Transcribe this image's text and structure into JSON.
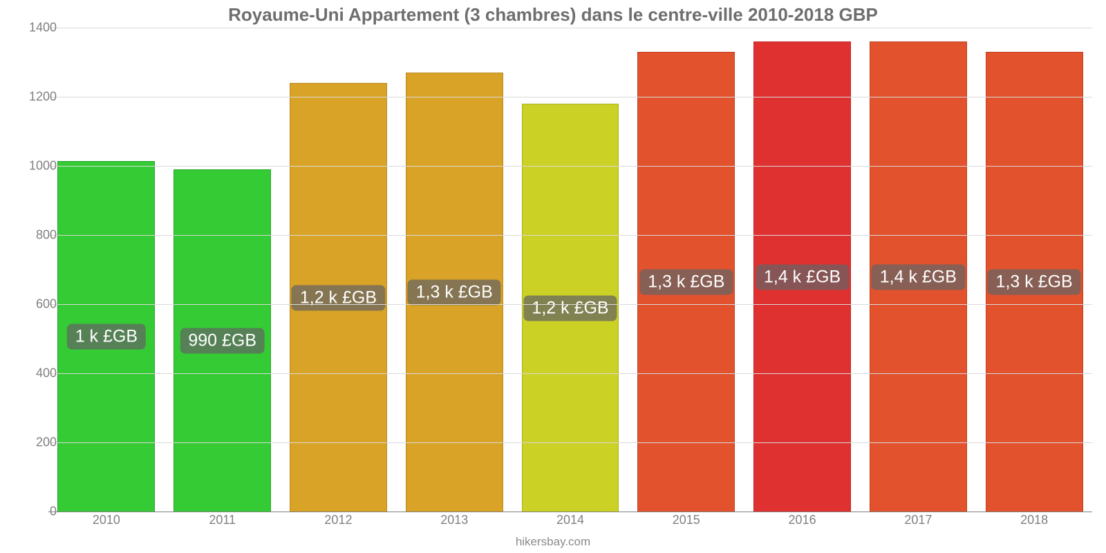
{
  "chart": {
    "type": "bar",
    "title": "Royaume-Uni Appartement (3 chambres) dans le centre-ville 2010-2018 GBP",
    "title_fontsize": 26,
    "title_color": "#6e6e6e",
    "footer": "hikersbay.com",
    "footer_fontsize": 17,
    "footer_color": "#8a8a8a",
    "background_color": "#ffffff",
    "grid_color": "#d9d9d9",
    "axis_color": "#808080",
    "tick_fontsize": 18,
    "tick_color": "#808080",
    "ylim": [
      0,
      1400
    ],
    "ytick_step": 200,
    "yticks": [
      0,
      200,
      400,
      600,
      800,
      1000,
      1200,
      1400
    ],
    "bar_width_ratio": 0.84,
    "bar_label_fontsize": 25,
    "bar_label_bg": "rgba(100,100,100,0.72)",
    "bar_label_color": "#ffffff",
    "categories": [
      "2010",
      "2011",
      "2012",
      "2013",
      "2014",
      "2015",
      "2016",
      "2017",
      "2018"
    ],
    "values": [
      1015,
      990,
      1240,
      1270,
      1180,
      1330,
      1360,
      1360,
      1330
    ],
    "value_labels": [
      "1 k £GB",
      "990 £GB",
      "1,2 k £GB",
      "1,3 k £GB",
      "1,2 k £GB",
      "1,3 k £GB",
      "1,4 k £GB",
      "1,4 k £GB",
      "1,3 k £GB"
    ],
    "bar_colors": [
      "#35cb35",
      "#35cb35",
      "#d9a327",
      "#d9a327",
      "#ccd126",
      "#e1522d",
      "#e03131",
      "#e1522d",
      "#e1522d"
    ],
    "bar_border_colors": [
      "#28a428",
      "#28a428",
      "#b9891f",
      "#b9891f",
      "#acb11f",
      "#c13f1f",
      "#c02121",
      "#c13f1f",
      "#c13f1f"
    ]
  }
}
